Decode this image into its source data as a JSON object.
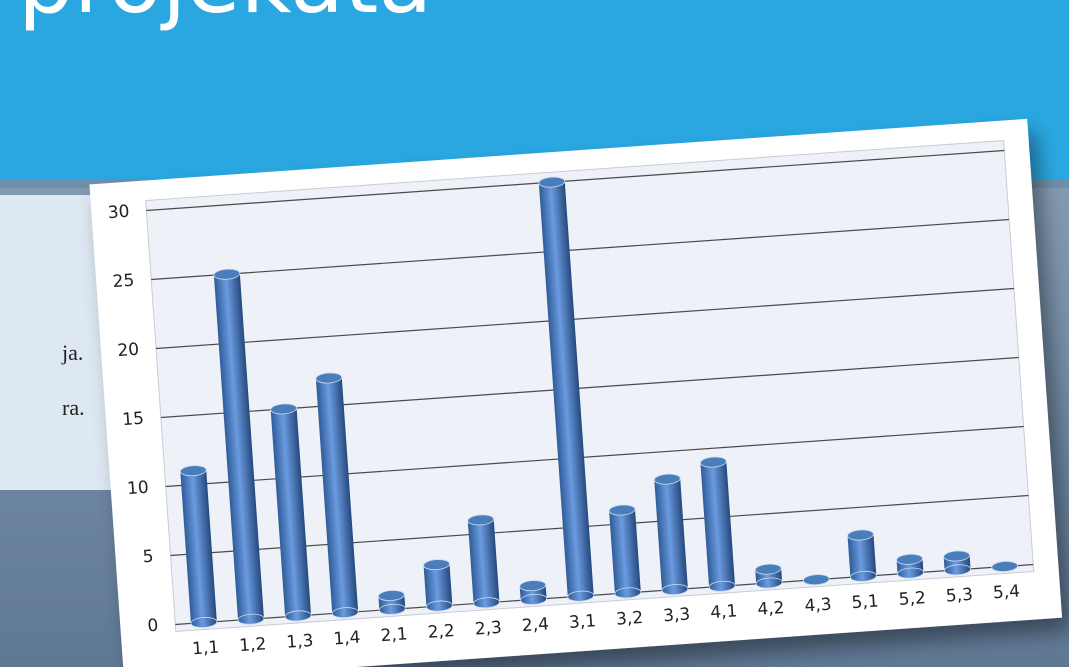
{
  "slide": {
    "title": "projekata",
    "lines": [
      "ja.",
      "ra."
    ]
  },
  "chart_data": {
    "type": "bar",
    "categories": [
      "1,1",
      "1,2",
      "1,3",
      "1,4",
      "2,1",
      "2,2",
      "2,3",
      "2,4",
      "3,1",
      "3,2",
      "3,3",
      "4,1",
      "4,2",
      "4,3",
      "5,1",
      "5,2",
      "5,3",
      "5,4"
    ],
    "values": [
      11,
      25,
      15,
      17,
      1,
      3,
      6,
      1,
      30,
      6,
      8,
      9,
      1,
      0,
      3,
      1,
      1,
      0
    ],
    "color": "#4a7ebb",
    "ylim": [
      0,
      30
    ],
    "yticks": [
      0,
      5,
      10,
      15,
      20,
      25,
      30
    ],
    "grid": true
  }
}
